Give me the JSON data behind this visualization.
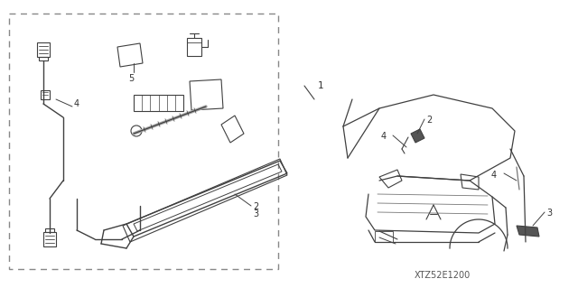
{
  "bg_color": "#ffffff",
  "line_color": "#404040",
  "part_number_text": "XTZ52E1200",
  "figure_width": 6.4,
  "figure_height": 3.19,
  "dpi": 100
}
